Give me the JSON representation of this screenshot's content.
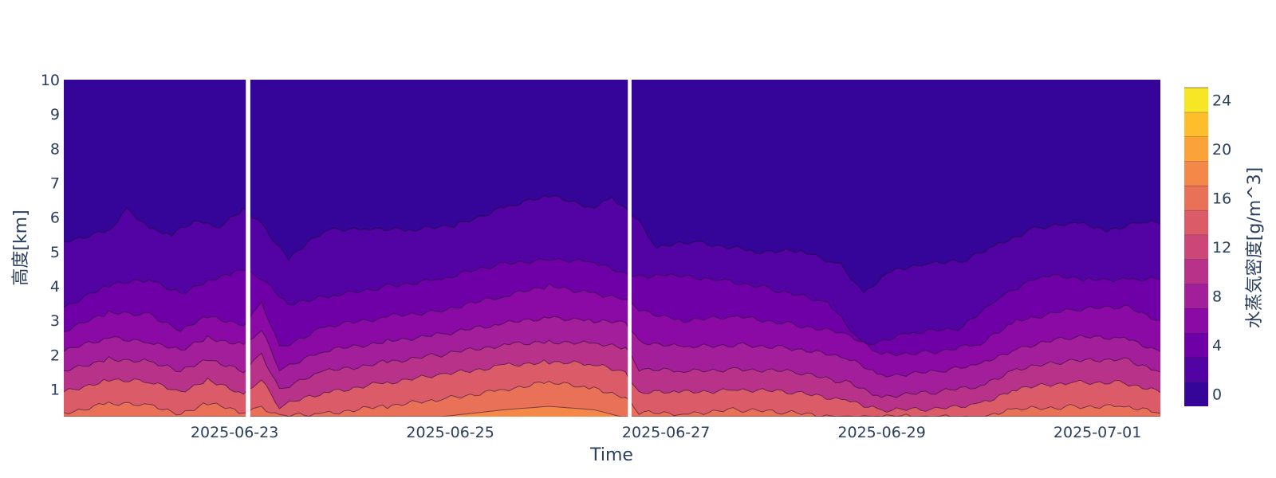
{
  "chart_data": {
    "type": "contour",
    "xlabel": "Time",
    "ylabel": "高度[km]",
    "colorbar_title": "水蒸気密度[g/m^3]",
    "x_ticks": [
      "2025-06-23",
      "2025-06-25",
      "2025-06-27",
      "2025-06-29",
      "2025-07-01"
    ],
    "y_ticks": [
      "1",
      "2",
      "3",
      "4",
      "5",
      "6",
      "7",
      "8",
      "9",
      "10"
    ],
    "colorbar_ticks": [
      "0",
      "4",
      "8",
      "12",
      "16",
      "20",
      "24"
    ],
    "xlim": [
      "2025-06-21T10:00",
      "2025-07-01T14:00"
    ],
    "ylim": [
      0.2,
      10
    ],
    "colorbar_range": [
      -1,
      25
    ],
    "colorbar_step": 2,
    "colorscale": [
      "#0d0887",
      "#350498",
      "#5302a3",
      "#6f00a8",
      "#8b0aa5",
      "#a31e9a",
      "#b83289",
      "#cc4778",
      "#db5c68",
      "#e97158",
      "#f48849",
      "#fba238",
      "#febd2a",
      "#f6e626",
      "#f0f921"
    ],
    "data_gaps": [
      [
        "2025-06-23T02:30",
        "2025-06-23T03:30"
      ],
      [
        "2025-06-26T15:30",
        "2025-06-26T16:20"
      ]
    ],
    "levels": [
      {
        "value": 2,
        "height_km": [
          [
            "2025-06-21T10:00",
            5.3
          ],
          [
            "2025-06-21T20:00",
            5.6
          ],
          [
            "2025-06-22T00:00",
            6.2
          ],
          [
            "2025-06-22T05:00",
            5.7
          ],
          [
            "2025-06-22T10:00",
            5.5
          ],
          [
            "2025-06-22T16:00",
            5.9
          ],
          [
            "2025-06-22T20:00",
            5.7
          ],
          [
            "2025-06-23T02:00",
            6.2
          ],
          [
            "2025-06-23T06:00",
            5.8
          ],
          [
            "2025-06-23T12:00",
            4.8
          ],
          [
            "2025-06-23T20:00",
            5.6
          ],
          [
            "2025-06-24T05:00",
            5.7
          ],
          [
            "2025-06-24T15:00",
            5.6
          ],
          [
            "2025-06-25T02:00",
            5.8
          ],
          [
            "2025-06-25T12:00",
            6.3
          ],
          [
            "2025-06-25T22:00",
            6.6
          ],
          [
            "2025-06-26T08:00",
            6.3
          ],
          [
            "2025-06-26T12:00",
            6.6
          ],
          [
            "2025-06-26T15:00",
            6.2
          ],
          [
            "2025-06-26T18:00",
            5.9
          ],
          [
            "2025-06-26T22:00",
            5.1
          ],
          [
            "2025-06-27T06:00",
            5.3
          ],
          [
            "2025-06-27T20:00",
            5.0
          ],
          [
            "2025-06-28T06:00",
            5.0
          ],
          [
            "2025-06-28T15:00",
            4.6
          ],
          [
            "2025-06-28T20:00",
            3.8
          ],
          [
            "2025-06-29T02:00",
            4.4
          ],
          [
            "2025-06-29T10:00",
            4.7
          ],
          [
            "2025-06-29T18:00",
            4.7
          ],
          [
            "2025-06-30T02:00",
            5.2
          ],
          [
            "2025-06-30T10:00",
            5.7
          ],
          [
            "2025-06-30T20:00",
            5.8
          ],
          [
            "2025-07-01T02:00",
            5.6
          ],
          [
            "2025-07-01T10:00",
            5.9
          ],
          [
            "2025-07-01T14:00",
            5.8
          ]
        ]
      },
      {
        "value": 4,
        "height_km": [
          [
            "2025-06-21T10:00",
            3.4
          ],
          [
            "2025-06-21T20:00",
            4.0
          ],
          [
            "2025-06-22T05:00",
            4.2
          ],
          [
            "2025-06-22T12:00",
            3.8
          ],
          [
            "2025-06-22T18:00",
            4.1
          ],
          [
            "2025-06-23T00:00",
            4.4
          ],
          [
            "2025-06-23T02:00",
            4.5
          ],
          [
            "2025-06-23T06:00",
            4.2
          ],
          [
            "2025-06-23T12:00",
            3.5
          ],
          [
            "2025-06-23T22:00",
            3.7
          ],
          [
            "2025-06-24T10:00",
            4.0
          ],
          [
            "2025-06-24T22:00",
            4.2
          ],
          [
            "2025-06-25T10:00",
            4.6
          ],
          [
            "2025-06-25T22:00",
            4.8
          ],
          [
            "2025-06-26T08:00",
            4.7
          ],
          [
            "2025-06-26T15:00",
            4.3
          ],
          [
            "2025-06-26T18:00",
            4.3
          ],
          [
            "2025-06-27T00:00",
            4.3
          ],
          [
            "2025-06-27T12:00",
            4.2
          ],
          [
            "2025-06-28T00:00",
            3.9
          ],
          [
            "2025-06-28T12:00",
            3.5
          ],
          [
            "2025-06-28T20:00",
            2.3
          ],
          [
            "2025-06-29T06:00",
            2.6
          ],
          [
            "2025-06-29T18:00",
            2.8
          ],
          [
            "2025-06-30T02:00",
            3.7
          ],
          [
            "2025-06-30T12:00",
            4.3
          ],
          [
            "2025-06-30T22:00",
            4.2
          ],
          [
            "2025-07-01T08:00",
            4.2
          ],
          [
            "2025-07-01T14:00",
            4.2
          ]
        ]
      },
      {
        "value": 6,
        "height_km": [
          [
            "2025-06-21T10:00",
            2.7
          ],
          [
            "2025-06-21T20:00",
            3.2
          ],
          [
            "2025-06-22T05:00",
            3.2
          ],
          [
            "2025-06-22T12:00",
            2.7
          ],
          [
            "2025-06-22T18:00",
            3.1
          ],
          [
            "2025-06-23T02:00",
            2.9
          ],
          [
            "2025-06-23T06:00",
            3.5
          ],
          [
            "2025-06-23T10:00",
            2.2
          ],
          [
            "2025-06-23T20:00",
            2.8
          ],
          [
            "2025-06-24T10:00",
            3.1
          ],
          [
            "2025-06-24T22:00",
            3.3
          ],
          [
            "2025-06-25T12:00",
            3.7
          ],
          [
            "2025-06-25T22:00",
            4.0
          ],
          [
            "2025-06-26T08:00",
            3.8
          ],
          [
            "2025-06-26T15:00",
            3.6
          ],
          [
            "2025-06-26T18:00",
            3.3
          ],
          [
            "2025-06-27T04:00",
            3.0
          ],
          [
            "2025-06-27T16:00",
            3.1
          ],
          [
            "2025-06-28T04:00",
            2.9
          ],
          [
            "2025-06-28T16:00",
            2.6
          ],
          [
            "2025-06-29T00:00",
            2.0
          ],
          [
            "2025-06-29T12:00",
            2.1
          ],
          [
            "2025-06-29T22:00",
            2.3
          ],
          [
            "2025-06-30T06:00",
            3.0
          ],
          [
            "2025-06-30T18:00",
            3.3
          ],
          [
            "2025-07-01T06:00",
            3.4
          ],
          [
            "2025-07-01T14:00",
            3.0
          ]
        ]
      },
      {
        "value": 8,
        "height_km": [
          [
            "2025-06-21T10:00",
            2.1
          ],
          [
            "2025-06-21T20:00",
            2.5
          ],
          [
            "2025-06-22T05:00",
            2.4
          ],
          [
            "2025-06-22T12:00",
            2.1
          ],
          [
            "2025-06-22T18:00",
            2.5
          ],
          [
            "2025-06-23T02:00",
            2.3
          ],
          [
            "2025-06-23T06:00",
            2.7
          ],
          [
            "2025-06-23T10:00",
            1.6
          ],
          [
            "2025-06-23T20:00",
            2.1
          ],
          [
            "2025-06-24T10:00",
            2.4
          ],
          [
            "2025-06-24T22:00",
            2.6
          ],
          [
            "2025-06-25T12:00",
            2.9
          ],
          [
            "2025-06-25T22:00",
            3.1
          ],
          [
            "2025-06-26T08:00",
            3.0
          ],
          [
            "2025-06-26T15:00",
            2.9
          ],
          [
            "2025-06-26T18:00",
            2.4
          ],
          [
            "2025-06-27T04:00",
            2.2
          ],
          [
            "2025-06-27T16:00",
            2.3
          ],
          [
            "2025-06-28T04:00",
            2.2
          ],
          [
            "2025-06-28T16:00",
            1.9
          ],
          [
            "2025-06-29T00:00",
            1.4
          ],
          [
            "2025-06-29T12:00",
            1.5
          ],
          [
            "2025-06-29T22:00",
            1.7
          ],
          [
            "2025-06-30T06:00",
            2.2
          ],
          [
            "2025-06-30T18:00",
            2.5
          ],
          [
            "2025-07-01T06:00",
            2.5
          ],
          [
            "2025-07-01T14:00",
            2.1
          ]
        ]
      },
      {
        "value": 10,
        "height_km": [
          [
            "2025-06-21T10:00",
            1.5
          ],
          [
            "2025-06-21T20:00",
            1.9
          ],
          [
            "2025-06-22T05:00",
            1.8
          ],
          [
            "2025-06-22T12:00",
            1.5
          ],
          [
            "2025-06-22T18:00",
            1.9
          ],
          [
            "2025-06-23T02:00",
            1.5
          ],
          [
            "2025-06-23T06:00",
            2.0
          ],
          [
            "2025-06-23T10:00",
            1.0
          ],
          [
            "2025-06-23T20:00",
            1.5
          ],
          [
            "2025-06-24T10:00",
            1.8
          ],
          [
            "2025-06-24T22:00",
            2.0
          ],
          [
            "2025-06-25T12:00",
            2.3
          ],
          [
            "2025-06-25T22:00",
            2.4
          ],
          [
            "2025-06-26T08:00",
            2.3
          ],
          [
            "2025-06-26T15:00",
            2.2
          ],
          [
            "2025-06-26T18:00",
            1.6
          ],
          [
            "2025-06-27T04:00",
            1.5
          ],
          [
            "2025-06-27T16:00",
            1.6
          ],
          [
            "2025-06-28T04:00",
            1.5
          ],
          [
            "2025-06-28T16:00",
            1.2
          ],
          [
            "2025-06-29T00:00",
            0.8
          ],
          [
            "2025-06-29T12:00",
            0.9
          ],
          [
            "2025-06-29T22:00",
            1.1
          ],
          [
            "2025-06-30T06:00",
            1.6
          ],
          [
            "2025-06-30T18:00",
            1.8
          ],
          [
            "2025-07-01T06:00",
            1.9
          ],
          [
            "2025-07-01T14:00",
            1.5
          ]
        ]
      },
      {
        "value": 12,
        "height_km": [
          [
            "2025-06-21T10:00",
            0.9
          ],
          [
            "2025-06-21T20:00",
            1.3
          ],
          [
            "2025-06-22T05:00",
            1.2
          ],
          [
            "2025-06-22T12:00",
            0.9
          ],
          [
            "2025-06-22T18:00",
            1.3
          ],
          [
            "2025-06-23T02:00",
            0.8
          ],
          [
            "2025-06-23T06:00",
            1.3
          ],
          [
            "2025-06-23T10:00",
            0.5
          ],
          [
            "2025-06-23T20:00",
            0.9
          ],
          [
            "2025-06-24T10:00",
            1.2
          ],
          [
            "2025-06-24T22:00",
            1.4
          ],
          [
            "2025-06-25T12:00",
            1.7
          ],
          [
            "2025-06-25T22:00",
            1.8
          ],
          [
            "2025-06-26T08:00",
            1.7
          ],
          [
            "2025-06-26T15:00",
            1.5
          ],
          [
            "2025-06-26T18:00",
            0.9
          ],
          [
            "2025-06-27T04:00",
            0.9
          ],
          [
            "2025-06-27T16:00",
            1.0
          ],
          [
            "2025-06-28T04:00",
            0.9
          ],
          [
            "2025-06-28T16:00",
            0.7
          ],
          [
            "2025-06-29T00:00",
            0.4
          ],
          [
            "2025-06-29T12:00",
            0.4
          ],
          [
            "2025-06-29T22:00",
            0.6
          ],
          [
            "2025-06-30T06:00",
            1.0
          ],
          [
            "2025-06-30T18:00",
            1.2
          ],
          [
            "2025-07-01T06:00",
            1.2
          ],
          [
            "2025-07-01T14:00",
            0.9
          ]
        ]
      },
      {
        "value": 14,
        "height_km": [
          [
            "2025-06-21T10:00",
            0.3
          ],
          [
            "2025-06-21T20:00",
            0.6
          ],
          [
            "2025-06-22T05:00",
            0.5
          ],
          [
            "2025-06-22T12:00",
            0.3
          ],
          [
            "2025-06-22T18:00",
            0.6
          ],
          [
            "2025-06-23T02:00",
            0.3
          ],
          [
            "2025-06-23T06:00",
            0.5
          ],
          [
            "2025-06-23T10:00",
            0.2
          ],
          [
            "2025-06-23T20:00",
            0.3
          ],
          [
            "2025-06-24T10:00",
            0.5
          ],
          [
            "2025-06-24T22:00",
            0.7
          ],
          [
            "2025-06-25T12:00",
            1.0
          ],
          [
            "2025-06-25T22:00",
            1.2
          ],
          [
            "2025-06-26T08:00",
            1.0
          ],
          [
            "2025-06-26T15:00",
            0.8
          ],
          [
            "2025-06-26T18:00",
            0.3
          ],
          [
            "2025-06-27T04:00",
            0.3
          ],
          [
            "2025-06-27T16:00",
            0.4
          ],
          [
            "2025-06-28T04:00",
            0.3
          ],
          [
            "2025-06-28T16:00",
            0.2
          ],
          [
            "2025-06-29T00:00",
            0.2
          ],
          [
            "2025-06-29T12:00",
            0.2
          ],
          [
            "2025-06-29T22:00",
            0.2
          ],
          [
            "2025-06-30T06:00",
            0.4
          ],
          [
            "2025-06-30T18:00",
            0.5
          ],
          [
            "2025-07-01T06:00",
            0.5
          ],
          [
            "2025-07-01T14:00",
            0.3
          ]
        ]
      },
      {
        "value": 16,
        "height_km": [
          [
            "2025-06-21T10:00",
            0.2
          ],
          [
            "2025-06-22T00:00",
            0.2
          ],
          [
            "2025-06-24T22:00",
            0.2
          ],
          [
            "2025-06-25T12:00",
            0.4
          ],
          [
            "2025-06-25T22:00",
            0.5
          ],
          [
            "2025-06-26T08:00",
            0.4
          ],
          [
            "2025-06-26T14:00",
            0.2
          ],
          [
            "2025-07-01T14:00",
            0.2
          ]
        ]
      }
    ]
  }
}
